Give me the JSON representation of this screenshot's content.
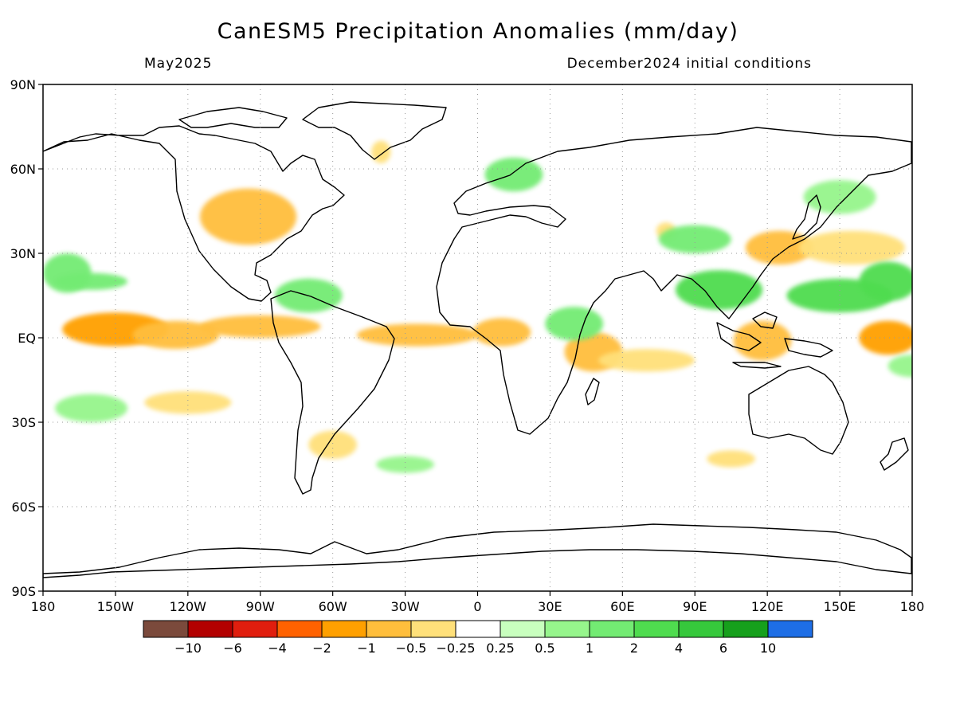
{
  "title": "CanESM5 Precipitation Anomalies (mm/day)",
  "subtitle_left": "May2025",
  "subtitle_right": "December2024 initial conditions",
  "axes": {
    "lon_ticks": [
      "180",
      "150W",
      "120W",
      "90W",
      "60W",
      "30W",
      "0",
      "30E",
      "60E",
      "90E",
      "120E",
      "150E",
      "180"
    ],
    "lat_ticks": [
      "90N",
      "60N",
      "30N",
      "EQ",
      "30S",
      "60S",
      "90S"
    ],
    "lon_range": [
      -180,
      180
    ],
    "lat_range": [
      -90,
      90
    ],
    "grid": "dotted, every 30 degrees"
  },
  "colorbar": {
    "colors": [
      "#7b4a3c",
      "#b30000",
      "#e01e0e",
      "#ff6200",
      "#ffa000",
      "#ffbe3c",
      "#ffe07a",
      "#ffffff",
      "#c8ffbe",
      "#96f58c",
      "#73eb73",
      "#4fdc4f",
      "#36c83c",
      "#16a01c",
      "#1e6ee6"
    ],
    "labels": [
      "−10",
      "−6",
      "−4",
      "−2",
      "−1",
      "−0.5",
      "−0.25",
      "0.25",
      "0.5",
      "1",
      "2",
      "4",
      "6",
      "10"
    ]
  },
  "anomaly_regions": [
    {
      "lon": -150,
      "lat": 3,
      "rx": 22,
      "ry": 6,
      "value": -2
    },
    {
      "lon": -125,
      "lat": 1,
      "rx": 18,
      "ry": 5,
      "value": -1
    },
    {
      "lon": -90,
      "lat": 4,
      "rx": 25,
      "ry": 4,
      "value": -1
    },
    {
      "lon": -25,
      "lat": 1,
      "rx": 25,
      "ry": 4,
      "value": -1
    },
    {
      "lon": 10,
      "lat": 2,
      "rx": 12,
      "ry": 5,
      "value": -1
    },
    {
      "lon": 48,
      "lat": -5,
      "rx": 12,
      "ry": 7,
      "value": -1
    },
    {
      "lon": 118,
      "lat": -1,
      "rx": 12,
      "ry": 7,
      "value": -1
    },
    {
      "lon": 170,
      "lat": 0,
      "rx": 12,
      "ry": 6,
      "value": -2
    },
    {
      "lon": -95,
      "lat": 43,
      "rx": 20,
      "ry": 10,
      "value": -1
    },
    {
      "lon": 125,
      "lat": 32,
      "rx": 14,
      "ry": 6,
      "value": -1
    },
    {
      "lon": 155,
      "lat": 32,
      "rx": 22,
      "ry": 6,
      "value": -0.5
    },
    {
      "lon": -120,
      "lat": -23,
      "rx": 18,
      "ry": 4,
      "value": -0.5
    },
    {
      "lon": -60,
      "lat": -38,
      "rx": 10,
      "ry": 5,
      "value": -0.5
    },
    {
      "lon": 70,
      "lat": -8,
      "rx": 20,
      "ry": 4,
      "value": -0.5
    },
    {
      "lon": 105,
      "lat": -43,
      "rx": 10,
      "ry": 3,
      "value": -0.5
    },
    {
      "lon": -40,
      "lat": 66,
      "rx": 4,
      "ry": 4,
      "value": -0.5
    },
    {
      "lon": 78,
      "lat": 38,
      "rx": 4,
      "ry": 3,
      "value": -0.5
    },
    {
      "lon": -160,
      "lat": 20,
      "rx": 15,
      "ry": 3,
      "value": 1
    },
    {
      "lon": -170,
      "lat": 23,
      "rx": 10,
      "ry": 7,
      "value": 1
    },
    {
      "lon": -70,
      "lat": 15,
      "rx": 14,
      "ry": 6,
      "value": 1
    },
    {
      "lon": 100,
      "lat": 17,
      "rx": 18,
      "ry": 7,
      "value": 2
    },
    {
      "lon": 150,
      "lat": 15,
      "rx": 22,
      "ry": 6,
      "value": 2
    },
    {
      "lon": 170,
      "lat": 20,
      "rx": 12,
      "ry": 7,
      "value": 2
    },
    {
      "lon": 90,
      "lat": 35,
      "rx": 15,
      "ry": 5,
      "value": 1
    },
    {
      "lon": 40,
      "lat": 5,
      "rx": 12,
      "ry": 6,
      "value": 1
    },
    {
      "lon": 15,
      "lat": 58,
      "rx": 12,
      "ry": 6,
      "value": 1
    },
    {
      "lon": 150,
      "lat": 50,
      "rx": 15,
      "ry": 6,
      "value": 0.5
    },
    {
      "lon": -160,
      "lat": -25,
      "rx": 15,
      "ry": 5,
      "value": 0.5
    },
    {
      "lon": -30,
      "lat": -45,
      "rx": 12,
      "ry": 3,
      "value": 0.5
    },
    {
      "lon": 180,
      "lat": -10,
      "rx": 10,
      "ry": 4,
      "value": 0.5
    }
  ]
}
